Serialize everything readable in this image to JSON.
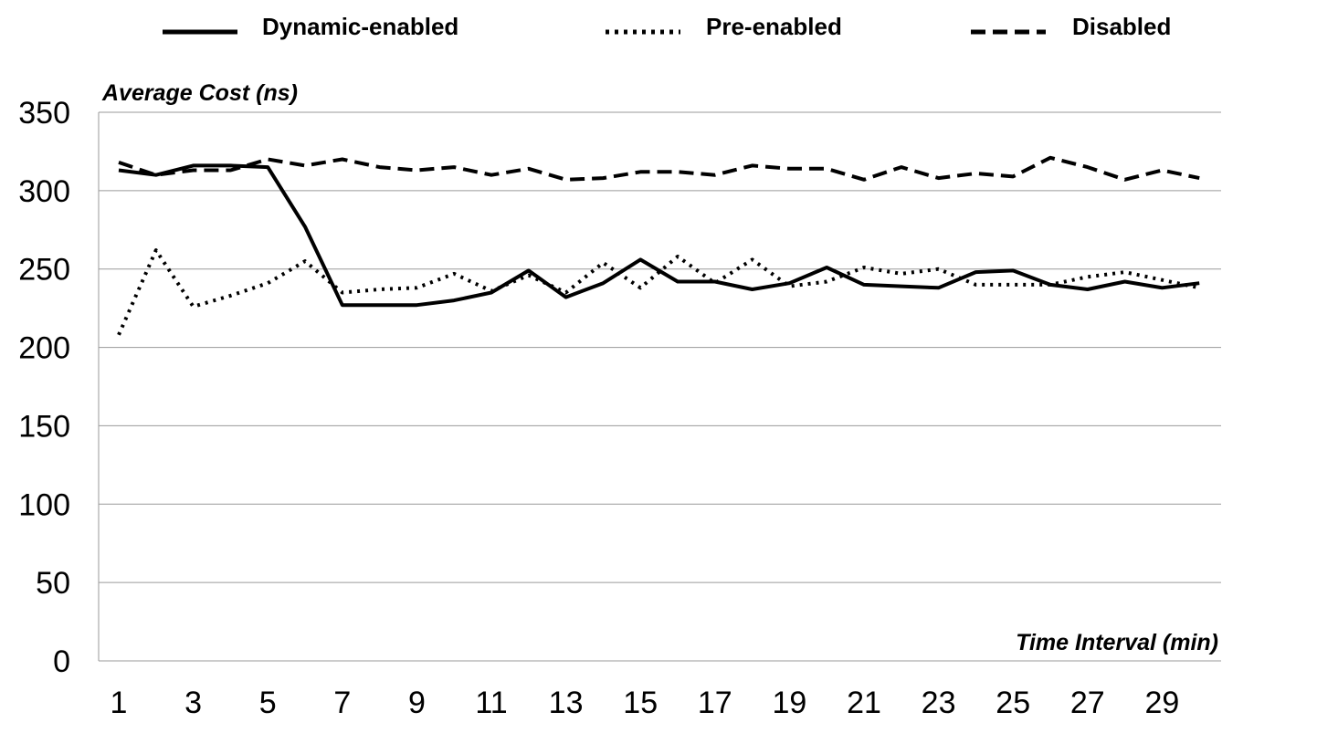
{
  "chart_data": {
    "type": "line",
    "xlabel": "Time Interval (min)",
    "ylabel": "Average Cost (ns)",
    "ylim": [
      0,
      350
    ],
    "yticks": [
      0,
      50,
      100,
      150,
      200,
      250,
      300,
      350
    ],
    "x": [
      1,
      2,
      3,
      4,
      5,
      6,
      7,
      8,
      9,
      10,
      11,
      12,
      13,
      14,
      15,
      16,
      17,
      18,
      19,
      20,
      21,
      22,
      23,
      24,
      25,
      26,
      27,
      28,
      29,
      30
    ],
    "xtick_labels": [
      "1",
      "3",
      "5",
      "7",
      "9",
      "11",
      "13",
      "15",
      "17",
      "19",
      "21",
      "23",
      "25",
      "27",
      "29"
    ],
    "xtick_positions": [
      1,
      3,
      5,
      7,
      9,
      11,
      13,
      15,
      17,
      19,
      21,
      23,
      25,
      27,
      29
    ],
    "grid": "horizontal",
    "legend_position": "top",
    "series": [
      {
        "name": "Dynamic-enabled",
        "style": "solid",
        "color": "#000000",
        "values": [
          313,
          310,
          316,
          316,
          315,
          277,
          227,
          227,
          227,
          230,
          235,
          249,
          232,
          241,
          256,
          242,
          242,
          237,
          241,
          251,
          240,
          239,
          238,
          248,
          249,
          240,
          237,
          242,
          238,
          241
        ]
      },
      {
        "name": "Pre-enabled",
        "style": "dotted",
        "color": "#000000",
        "values": [
          208,
          262,
          226,
          233,
          241,
          255,
          235,
          237,
          238,
          247,
          236,
          246,
          235,
          254,
          238,
          258,
          241,
          256,
          239,
          242,
          251,
          247,
          250,
          240,
          240,
          240,
          245,
          248,
          243,
          238
        ]
      },
      {
        "name": "Disabled",
        "style": "dashed",
        "color": "#000000",
        "values": [
          318,
          310,
          313,
          313,
          320,
          316,
          320,
          315,
          313,
          315,
          310,
          314,
          307,
          308,
          312,
          312,
          310,
          316,
          314,
          314,
          307,
          315,
          308,
          311,
          309,
          321,
          315,
          307,
          313,
          308
        ]
      }
    ]
  }
}
